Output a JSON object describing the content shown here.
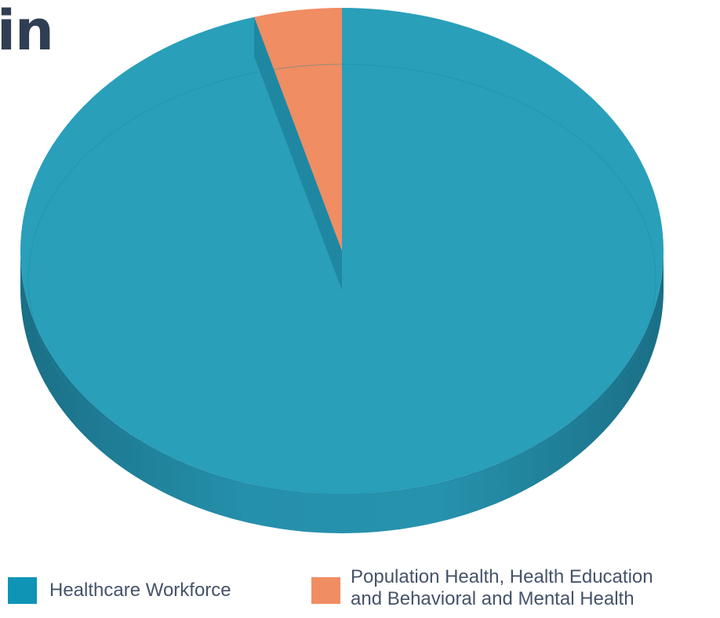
{
  "title_fragment": "in",
  "chart_data": {
    "type": "pie",
    "title": "",
    "slices": [
      {
        "label": "Healthcare Workforce",
        "value": 95.6,
        "color": "#299fba"
      },
      {
        "label": "Population Health, Health Education\nand Behavioral and Mental Health",
        "value": 4.4,
        "color": "#f08d62"
      }
    ],
    "legend_placement": "bottom"
  }
}
